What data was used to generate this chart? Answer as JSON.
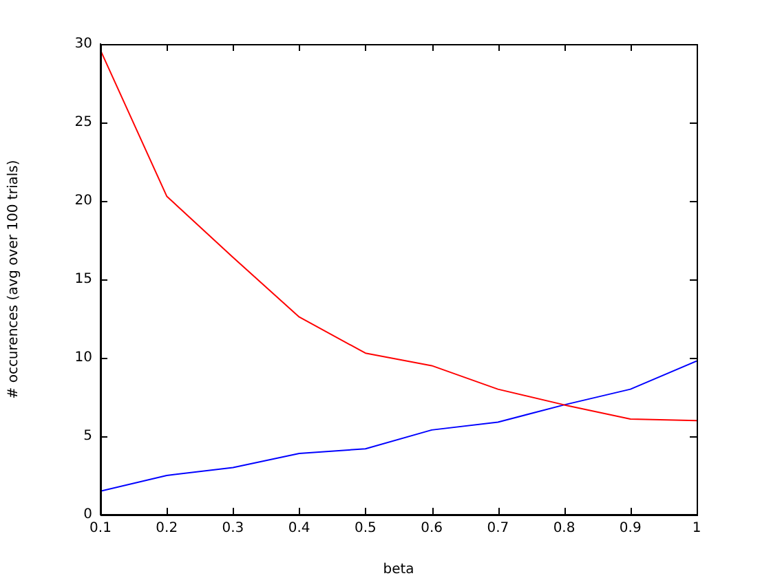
{
  "chart_data": {
    "type": "line",
    "xlabel": "beta",
    "ylabel": "# occurences (avg over 100 trials)",
    "x": [
      0.1,
      0.2,
      0.3,
      0.4,
      0.5,
      0.6,
      0.7,
      0.8,
      0.9,
      1.0
    ],
    "series": [
      {
        "color": "#ff0000",
        "values": [
          29.6,
          20.3,
          16.4,
          12.6,
          10.3,
          9.5,
          8.0,
          7.0,
          6.1,
          6.0
        ]
      },
      {
        "color": "#0000ff",
        "values": [
          1.5,
          2.5,
          3.0,
          3.9,
          4.2,
          5.4,
          5.9,
          7.0,
          8.0,
          9.8
        ]
      }
    ],
    "xlim": [
      0.1,
      1
    ],
    "xticks": [
      0.1,
      0.2,
      0.3,
      0.4,
      0.5,
      0.6,
      0.7,
      0.8,
      0.9,
      1
    ],
    "ylim": [
      0,
      30
    ],
    "yticks": [
      0,
      5,
      10,
      15,
      20,
      25,
      30
    ],
    "grid": false,
    "legend": false,
    "marker": "none",
    "line_style": "solid"
  }
}
